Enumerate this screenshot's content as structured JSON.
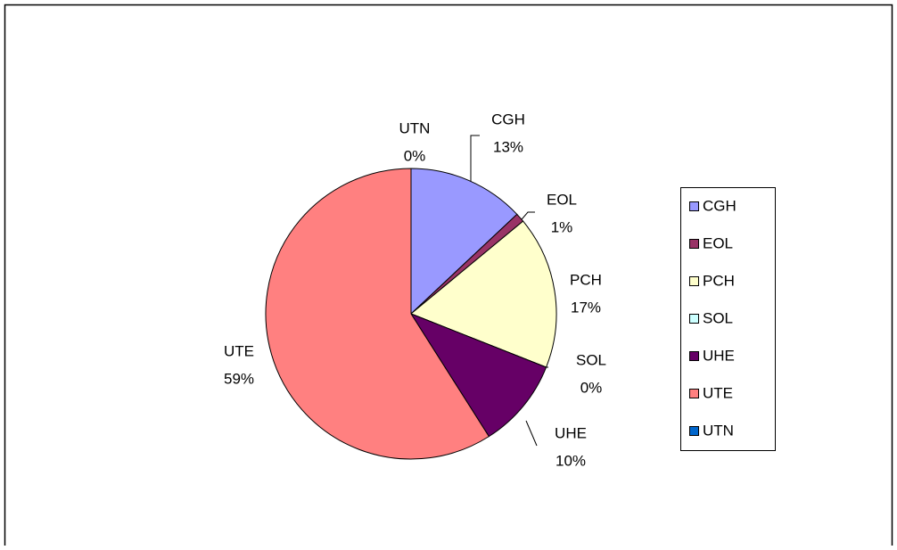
{
  "chart_data": {
    "type": "pie",
    "categories": [
      "CGH",
      "EOL",
      "PCH",
      "SOL",
      "UHE",
      "UTE",
      "UTN"
    ],
    "values": [
      13,
      1,
      17,
      0,
      10,
      59,
      0
    ],
    "value_labels": [
      "13%",
      "1%",
      "17%",
      "0%",
      "10%",
      "59%",
      "0%"
    ],
    "colors": [
      "#9999ff",
      "#993366",
      "#ffffcc",
      "#ccffff",
      "#660066",
      "#ff8080",
      "#0066cc"
    ],
    "legend": "right"
  }
}
